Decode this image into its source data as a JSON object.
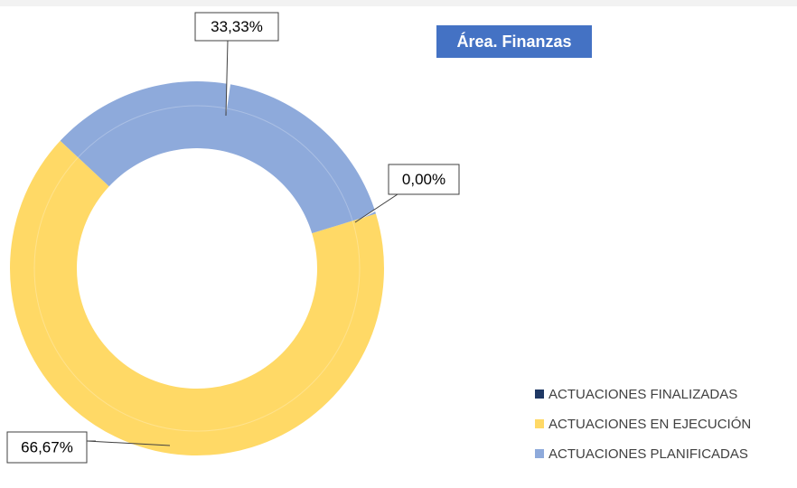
{
  "chart_data": {
    "type": "pie",
    "title": "Área.  Finanzas",
    "categories": [
      "ACTUACIONES FINALIZADAS",
      "ACTUACIONES EN EJECUCIÓN",
      "ACTUACIONES PLANIFICADAS"
    ],
    "values": [
      0,
      66.67,
      33.33
    ],
    "value_labels": [
      "0,00%",
      "66,67%",
      "33,33%"
    ],
    "colors": [
      "#1f3864",
      "#ffd966",
      "#8eaadb"
    ]
  }
}
